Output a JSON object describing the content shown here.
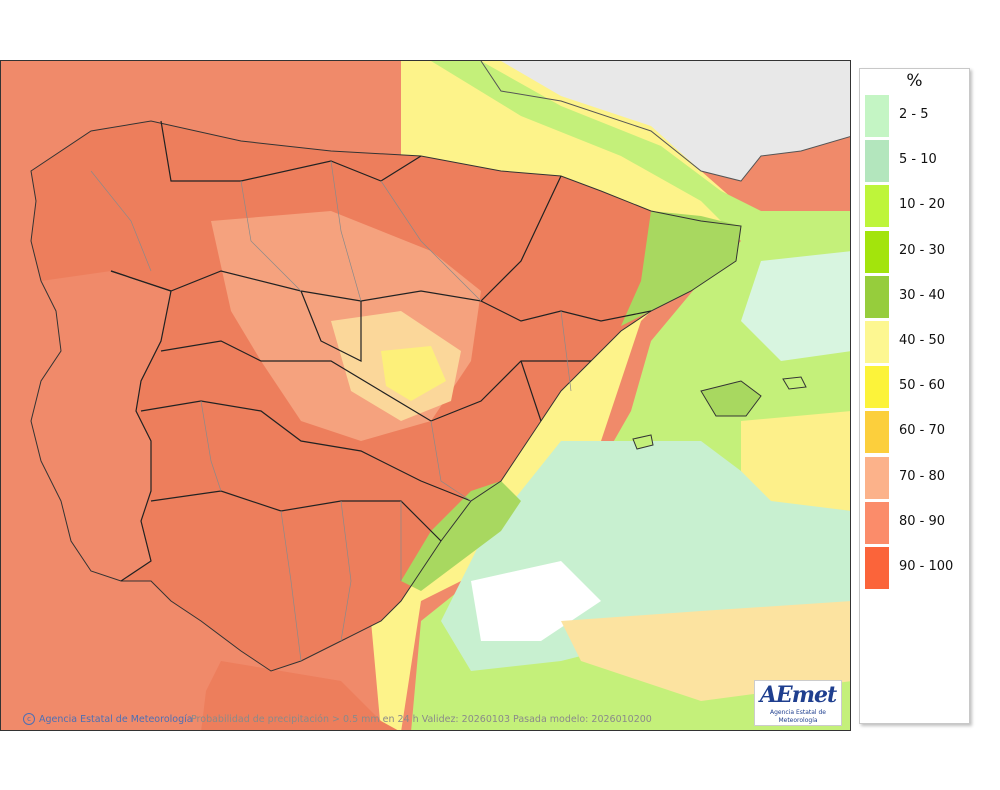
{
  "legend": {
    "unit": "%",
    "classes": [
      {
        "label": "2 - 5",
        "color": "#c4f5c4"
      },
      {
        "label": "5 - 10",
        "color": "#b3e6bd"
      },
      {
        "label": "10 - 20",
        "color": "#bef53a"
      },
      {
        "label": "20 - 30",
        "color": "#a3e40c"
      },
      {
        "label": "30 - 40",
        "color": "#96cd3c"
      },
      {
        "label": "40 - 50",
        "color": "#fdf791"
      },
      {
        "label": "50 - 60",
        "color": "#fcf33a"
      },
      {
        "label": "60 - 70",
        "color": "#fccf3c"
      },
      {
        "label": "70 - 80",
        "color": "#fcb28a"
      },
      {
        "label": "80 - 90",
        "color": "#fb8c6a"
      },
      {
        "label": "90 - 100",
        "color": "#fb643a"
      }
    ]
  },
  "footer": {
    "credit": "Agencia Estatal de Meteorología",
    "caption": "Probabilidad de precipitación > 0.5 mm en 24 h Validez: 20260103 Pasada modelo: 2026010200"
  },
  "logo": {
    "wordmark": "AEmet",
    "subtitle": "Agencia Estatal de Meteorología"
  }
}
